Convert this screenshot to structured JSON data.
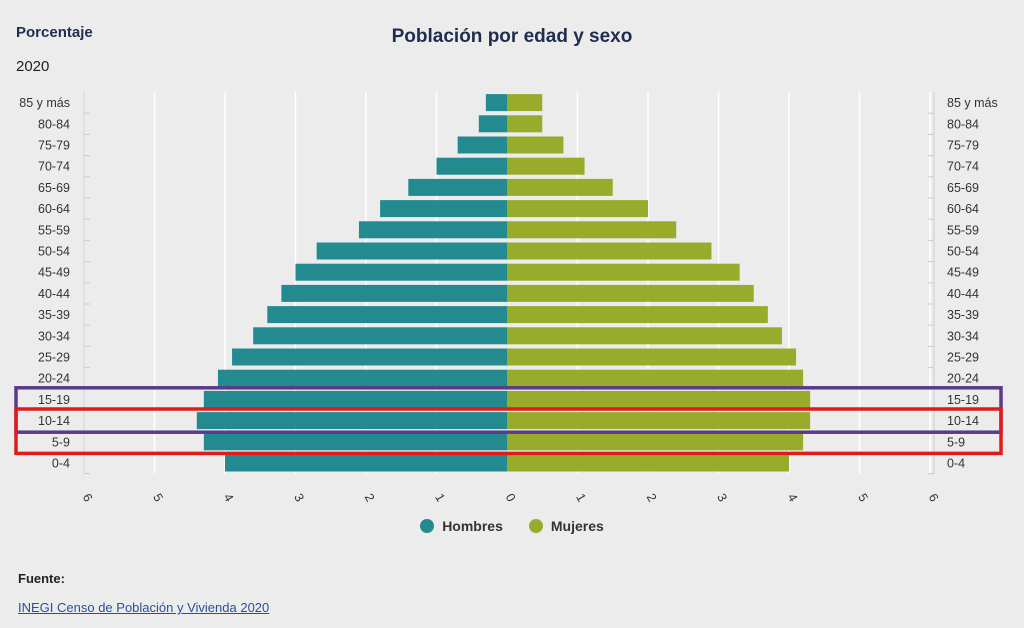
{
  "unit_label": "Porcentaje",
  "year_label": "2020",
  "chart_data": {
    "type": "bar",
    "orientation": "horizontal-population-pyramid",
    "title": "Población por edad y sexo",
    "categories": [
      "85 y más",
      "80-84",
      "75-79",
      "70-74",
      "65-69",
      "60-64",
      "55-59",
      "50-54",
      "45-49",
      "40-44",
      "35-39",
      "30-34",
      "25-29",
      "20-24",
      "15-19",
      "10-14",
      "5-9",
      "0-4"
    ],
    "series": [
      {
        "name": "Hombres",
        "color": "#238b8f",
        "side": "left",
        "values": [
          0.3,
          0.4,
          0.7,
          1.0,
          1.4,
          1.8,
          2.1,
          2.7,
          3.0,
          3.2,
          3.4,
          3.6,
          3.9,
          4.1,
          4.3,
          4.4,
          4.3,
          4.0
        ]
      },
      {
        "name": "Mujeres",
        "color": "#99ab2b",
        "side": "right",
        "values": [
          0.5,
          0.5,
          0.8,
          1.1,
          1.5,
          2.0,
          2.4,
          2.9,
          3.3,
          3.5,
          3.7,
          3.9,
          4.1,
          4.2,
          4.3,
          4.3,
          4.2,
          4.0
        ]
      }
    ],
    "x_ticks": [
      "6",
      "5",
      "4",
      "3",
      "2",
      "1",
      "0",
      "1",
      "2",
      "3",
      "4",
      "5",
      "6"
    ],
    "xlim": [
      -6,
      6
    ],
    "grid": true,
    "legend_position": "bottom",
    "highlights": [
      {
        "name": "purple-box",
        "color": "#5b3a8a",
        "categories": [
          "15-19",
          "10-14"
        ]
      },
      {
        "name": "red-box",
        "color": "#e01b1b",
        "categories": [
          "10-14",
          "5-9"
        ]
      }
    ]
  },
  "legend": {
    "hombres": "Hombres",
    "mujeres": "Mujeres"
  },
  "source": {
    "heading": "Fuente:",
    "link_text": "INEGI Censo de Población y Vivienda 2020"
  }
}
